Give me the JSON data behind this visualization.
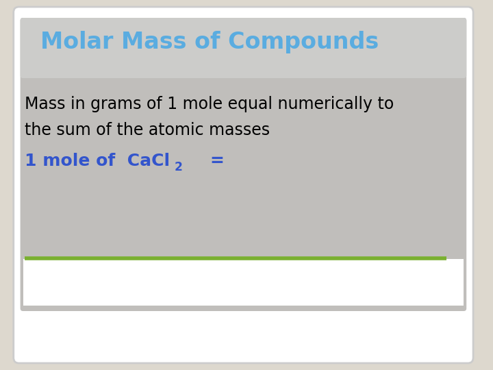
{
  "outer_bg": "#ddd8ce",
  "outer_box_color": "#ffffff",
  "inner_bg": "#b8b8b8",
  "inner_bg2": "#c8c5c0",
  "title_text": "Molar Mass of Compounds",
  "title_color": "#5aace0",
  "title_fontsize": 24,
  "body_text1": "Mass in grams of 1 mole equal numerically to",
  "body_text2": "the sum of the atomic masses",
  "body_color": "#000000",
  "body_fontsize": 17,
  "mole_color": "#3355cc",
  "mole_fontsize": 18,
  "line_color": "#7ab030",
  "line_width": 4.0,
  "bottom_strip_color": "#ffffff"
}
